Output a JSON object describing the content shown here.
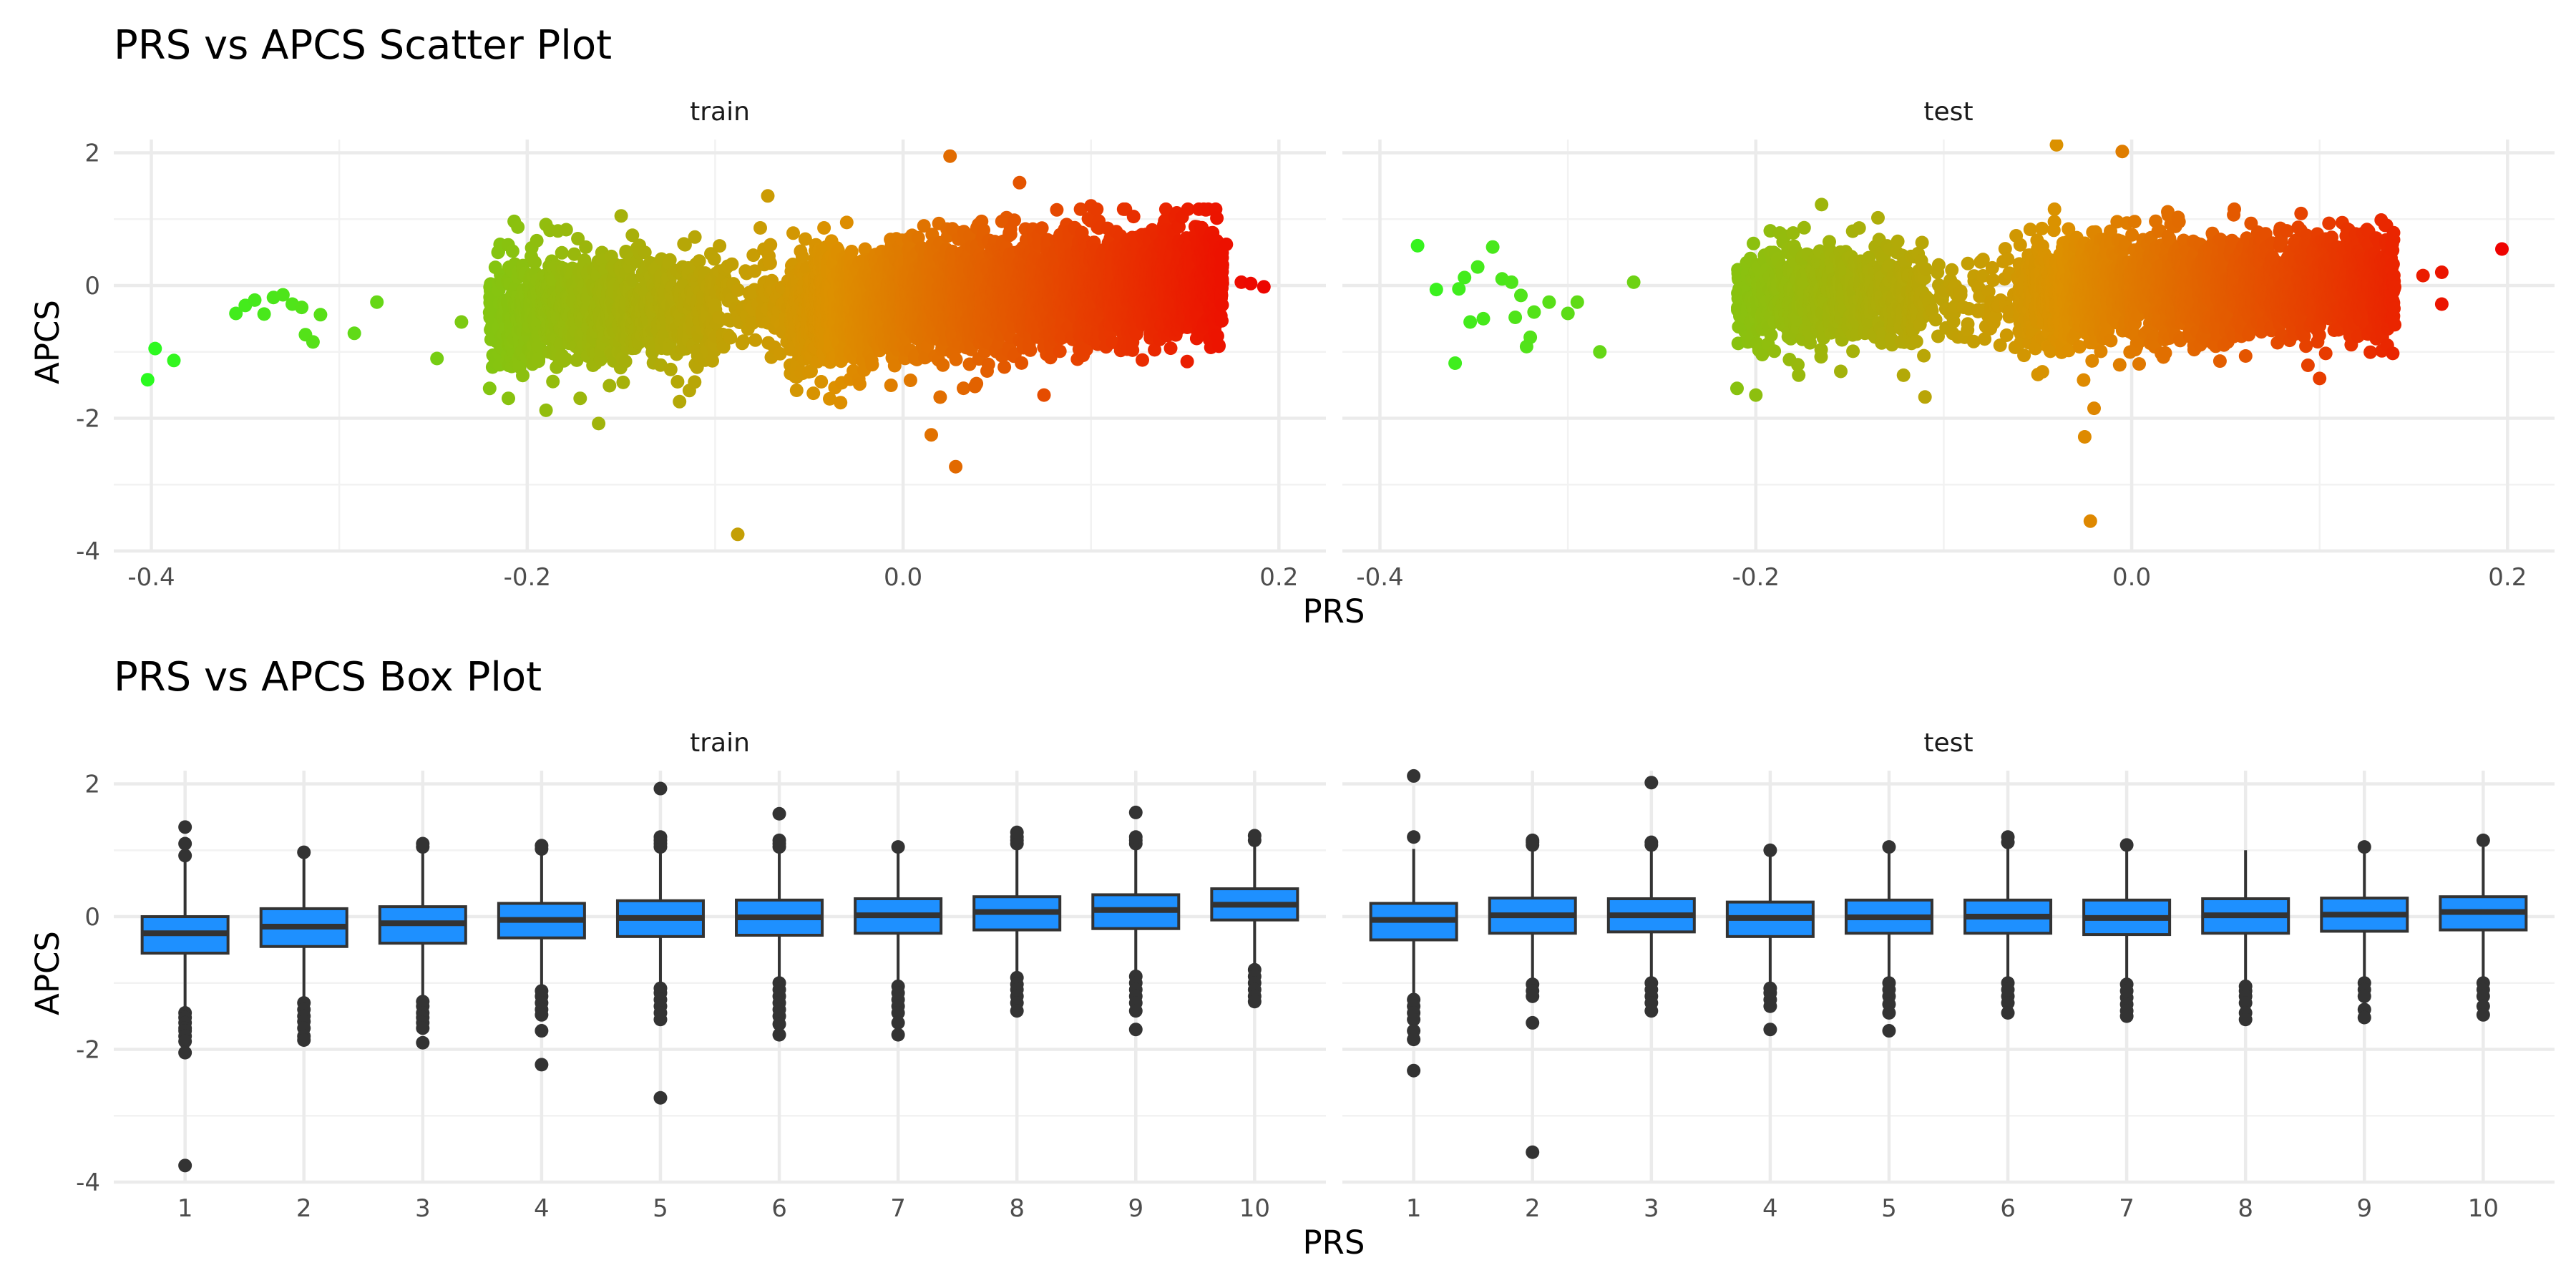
{
  "chart_data": [
    {
      "type": "scatter",
      "title": "PRS vs APCS Scatter Plot",
      "xlabel": "PRS",
      "ylabel": "APCS",
      "xlim": [
        -0.42,
        0.225
      ],
      "ylim": [
        -4,
        2.2
      ],
      "xticks": [
        "-0.4",
        "-0.2",
        "0.0",
        "0.2"
      ],
      "yticks": [
        "-4",
        "-2",
        "0",
        "2"
      ],
      "grid": true,
      "color_scale": {
        "low": "#22ff22",
        "mid": "#dd9000",
        "high": "#ee0000",
        "mapped_to": "PRS"
      },
      "facets": [
        {
          "name": "train",
          "points": [
            [
              -0.402,
              -1.42
            ],
            [
              -0.398,
              -0.95
            ],
            [
              -0.388,
              -1.13
            ],
            [
              -0.355,
              -0.42
            ],
            [
              -0.35,
              -0.3
            ],
            [
              -0.345,
              -0.22
            ],
            [
              -0.34,
              -0.43
            ],
            [
              -0.335,
              -0.18
            ],
            [
              -0.33,
              -0.14
            ],
            [
              -0.325,
              -0.28
            ],
            [
              -0.32,
              -0.33
            ],
            [
              -0.318,
              -0.74
            ],
            [
              -0.314,
              -0.85
            ],
            [
              -0.31,
              -0.44
            ],
            [
              -0.292,
              -0.72
            ],
            [
              -0.28,
              -0.25
            ],
            [
              -0.248,
              -1.1
            ],
            [
              -0.235,
              -0.55
            ],
            [
              -0.22,
              -1.55
            ],
            [
              -0.21,
              -1.7
            ],
            [
              -0.205,
              0.88
            ],
            [
              -0.19,
              -1.88
            ],
            [
              -0.162,
              -2.08
            ],
            [
              -0.15,
              1.05
            ],
            [
              -0.088,
              -3.75
            ],
            [
              -0.072,
              1.35
            ],
            [
              -0.12,
              -1.45
            ],
            [
              -0.06,
              -1.2
            ],
            [
              0.025,
              1.95
            ],
            [
              0.028,
              -2.73
            ],
            [
              0.015,
              -2.25
            ],
            [
              0.062,
              1.55
            ],
            [
              0.172,
              0.62
            ],
            [
              0.18,
              0.05
            ],
            [
              0.185,
              0.03
            ],
            [
              0.192,
              -0.02
            ],
            [
              0.165,
              -0.3
            ],
            [
              0.158,
              -0.72
            ],
            [
              0.075,
              -1.65
            ],
            [
              -0.03,
              0.95
            ],
            [
              0.1,
              1.2
            ],
            [
              0.16,
              1.15
            ]
          ],
          "clusters": [
            {
              "x_range": [
                -0.22,
                -0.1
              ],
              "y_center": -0.35,
              "y_sd": 0.4,
              "count": 1100
            },
            {
              "x_range": [
                -0.1,
                -0.06
              ],
              "y_center": -0.3,
              "y_sd": 0.4,
              "count": 120
            },
            {
              "x_range": [
                -0.06,
                0.17
              ],
              "y_center": -0.12,
              "y_sd": 0.42,
              "y_slope": 2.2,
              "count": 4200
            }
          ]
        },
        {
          "name": "test",
          "points": [
            [
              -0.38,
              0.6
            ],
            [
              -0.37,
              -0.06
            ],
            [
              -0.36,
              -1.17
            ],
            [
              -0.358,
              -0.05
            ],
            [
              -0.355,
              0.12
            ],
            [
              -0.352,
              -0.55
            ],
            [
              -0.348,
              0.28
            ],
            [
              -0.345,
              -0.5
            ],
            [
              -0.34,
              0.58
            ],
            [
              -0.335,
              0.1
            ],
            [
              -0.33,
              0.05
            ],
            [
              -0.328,
              -0.48
            ],
            [
              -0.325,
              -0.15
            ],
            [
              -0.322,
              -0.92
            ],
            [
              -0.32,
              -0.78
            ],
            [
              -0.318,
              -0.4
            ],
            [
              -0.31,
              -0.25
            ],
            [
              -0.3,
              -0.42
            ],
            [
              -0.295,
              -0.25
            ],
            [
              -0.283,
              -1.0
            ],
            [
              -0.265,
              0.05
            ],
            [
              -0.21,
              -1.55
            ],
            [
              -0.2,
              -1.65
            ],
            [
              -0.165,
              1.22
            ],
            [
              -0.135,
              1.02
            ],
            [
              -0.11,
              -1.68
            ],
            [
              -0.04,
              2.12
            ],
            [
              -0.005,
              2.02
            ],
            [
              -0.025,
              -2.28
            ],
            [
              -0.02,
              -1.85
            ],
            [
              -0.022,
              -3.55
            ],
            [
              0.165,
              -0.28
            ],
            [
              0.165,
              0.2
            ],
            [
              0.197,
              0.55
            ],
            [
              0.155,
              0.15
            ],
            [
              -0.07,
              -0.9
            ],
            [
              0.1,
              -1.4
            ]
          ],
          "clusters": [
            {
              "x_range": [
                -0.21,
                -0.11
              ],
              "y_center": -0.15,
              "y_sd": 0.38,
              "count": 800
            },
            {
              "x_range": [
                -0.11,
                -0.06
              ],
              "y_center": -0.2,
              "y_sd": 0.35,
              "count": 90
            },
            {
              "x_range": [
                -0.06,
                0.14
              ],
              "y_center": -0.05,
              "y_sd": 0.38,
              "y_slope": 0.5,
              "count": 2600
            }
          ]
        }
      ]
    },
    {
      "type": "box",
      "title": "PRS vs APCS Box Plot",
      "xlabel": "PRS",
      "ylabel": "APCS",
      "categories": [
        "1",
        "2",
        "3",
        "4",
        "5",
        "6",
        "7",
        "8",
        "9",
        "10"
      ],
      "ylim": [
        -4,
        2.2
      ],
      "yticks": [
        "-4",
        "-2",
        "0",
        "2"
      ],
      "fill": "#1e90ff",
      "facets": [
        {
          "name": "train",
          "boxes": [
            {
              "q1": -0.55,
              "median": -0.25,
              "q3": 0.0,
              "lo": -1.38,
              "hi": 0.82,
              "outliers": [
                1.35,
                1.1,
                0.92,
                -1.45,
                -1.52,
                -1.6,
                -1.68,
                -1.72,
                -1.8,
                -1.88,
                -2.05,
                -3.75
              ]
            },
            {
              "q1": -0.45,
              "median": -0.15,
              "q3": 0.12,
              "lo": -1.25,
              "hi": 0.93,
              "outliers": [
                0.97,
                -1.3,
                -1.4,
                -1.5,
                -1.58,
                -1.68,
                -1.8,
                -1.86
              ]
            },
            {
              "q1": -0.4,
              "median": -0.1,
              "q3": 0.15,
              "lo": -1.2,
              "hi": 0.98,
              "outliers": [
                1.05,
                1.1,
                -1.28,
                -1.35,
                -1.45,
                -1.52,
                -1.6,
                -1.68,
                -1.9
              ]
            },
            {
              "q1": -0.32,
              "median": -0.05,
              "q3": 0.2,
              "lo": -1.08,
              "hi": 0.98,
              "outliers": [
                1.02,
                1.07,
                -1.12,
                -1.2,
                -1.3,
                -1.4,
                -1.48,
                -1.72,
                -2.23
              ]
            },
            {
              "q1": -0.3,
              "median": -0.02,
              "q3": 0.24,
              "lo": -1.05,
              "hi": 1.0,
              "outliers": [
                1.05,
                1.1,
                1.15,
                1.2,
                1.93,
                -1.08,
                -1.15,
                -1.25,
                -1.35,
                -1.45,
                -1.55,
                -2.73
              ]
            },
            {
              "q1": -0.28,
              "median": -0.01,
              "q3": 0.25,
              "lo": -1.0,
              "hi": 1.02,
              "outliers": [
                1.05,
                1.1,
                1.15,
                1.55,
                -1.0,
                -1.1,
                -1.2,
                -1.3,
                -1.4,
                -1.5,
                -1.62,
                -1.78
              ]
            },
            {
              "q1": -0.25,
              "median": 0.02,
              "q3": 0.27,
              "lo": -1.0,
              "hi": 1.02,
              "outliers": [
                1.05,
                -1.05,
                -1.15,
                -1.25,
                -1.35,
                -1.45,
                -1.6,
                -1.78
              ]
            },
            {
              "q1": -0.2,
              "median": 0.07,
              "q3": 0.3,
              "lo": -0.88,
              "hi": 1.05,
              "outliers": [
                1.1,
                1.15,
                1.2,
                1.27,
                -0.92,
                -1.02,
                -1.1,
                -1.2,
                -1.3,
                -1.42
              ]
            },
            {
              "q1": -0.18,
              "median": 0.1,
              "q3": 0.33,
              "lo": -0.85,
              "hi": 1.07,
              "outliers": [
                1.1,
                1.15,
                1.2,
                1.57,
                -0.9,
                -1.0,
                -1.1,
                -1.2,
                -1.3,
                -1.42,
                -1.7
              ]
            },
            {
              "q1": -0.05,
              "median": 0.18,
              "q3": 0.42,
              "lo": -0.7,
              "hi": 1.12,
              "outliers": [
                1.15,
                1.22,
                -0.8,
                -0.9,
                -1.0,
                -1.1,
                -1.2,
                -1.28
              ]
            }
          ]
        },
        {
          "name": "test",
          "boxes": [
            {
              "q1": -0.35,
              "median": -0.05,
              "q3": 0.2,
              "lo": -1.15,
              "hi": 1.02,
              "outliers": [
                1.2,
                2.12,
                -1.25,
                -1.35,
                -1.45,
                -1.55,
                -1.72,
                -1.85,
                -2.32
              ]
            },
            {
              "q1": -0.25,
              "median": 0.02,
              "q3": 0.28,
              "lo": -0.98,
              "hi": 1.05,
              "outliers": [
                1.08,
                1.12,
                1.15,
                -1.02,
                -1.12,
                -1.2,
                -1.6,
                -3.55
              ]
            },
            {
              "q1": -0.23,
              "median": 0.02,
              "q3": 0.27,
              "lo": -0.95,
              "hi": 1.02,
              "outliers": [
                1.08,
                1.12,
                2.02,
                -1.0,
                -1.1,
                -1.2,
                -1.3,
                -1.42
              ]
            },
            {
              "q1": -0.3,
              "median": -0.02,
              "q3": 0.22,
              "lo": -1.05,
              "hi": 0.98,
              "outliers": [
                1.0,
                -1.08,
                -1.15,
                -1.25,
                -1.35,
                -1.7
              ]
            },
            {
              "q1": -0.25,
              "median": -0.01,
              "q3": 0.25,
              "lo": -0.98,
              "hi": 1.0,
              "outliers": [
                1.05,
                -1.0,
                -1.1,
                -1.2,
                -1.32,
                -1.45,
                -1.72
              ]
            },
            {
              "q1": -0.25,
              "median": 0.0,
              "q3": 0.25,
              "lo": -0.98,
              "hi": 1.05,
              "outliers": [
                1.12,
                1.2,
                -1.0,
                -1.1,
                -1.2,
                -1.3,
                -1.45
              ]
            },
            {
              "q1": -0.27,
              "median": -0.02,
              "q3": 0.25,
              "lo": -1.0,
              "hi": 1.02,
              "outliers": [
                1.08,
                -1.02,
                -1.12,
                -1.22,
                -1.32,
                -1.42,
                -1.5
              ]
            },
            {
              "q1": -0.25,
              "median": 0.02,
              "q3": 0.27,
              "lo": -0.98,
              "hi": 1.0,
              "outliers": [
                -1.05,
                -1.12,
                -1.2,
                -1.3,
                -1.45,
                -1.55
              ]
            },
            {
              "q1": -0.22,
              "median": 0.03,
              "q3": 0.28,
              "lo": -0.95,
              "hi": 0.98,
              "outliers": [
                1.05,
                -1.0,
                -1.1,
                -1.2,
                -1.4,
                -1.52
              ]
            },
            {
              "q1": -0.2,
              "median": 0.07,
              "q3": 0.3,
              "lo": -0.92,
              "hi": 1.05,
              "outliers": [
                1.15,
                -1.0,
                -1.1,
                -1.2,
                -1.35,
                -1.48
              ]
            }
          ]
        }
      ]
    }
  ]
}
